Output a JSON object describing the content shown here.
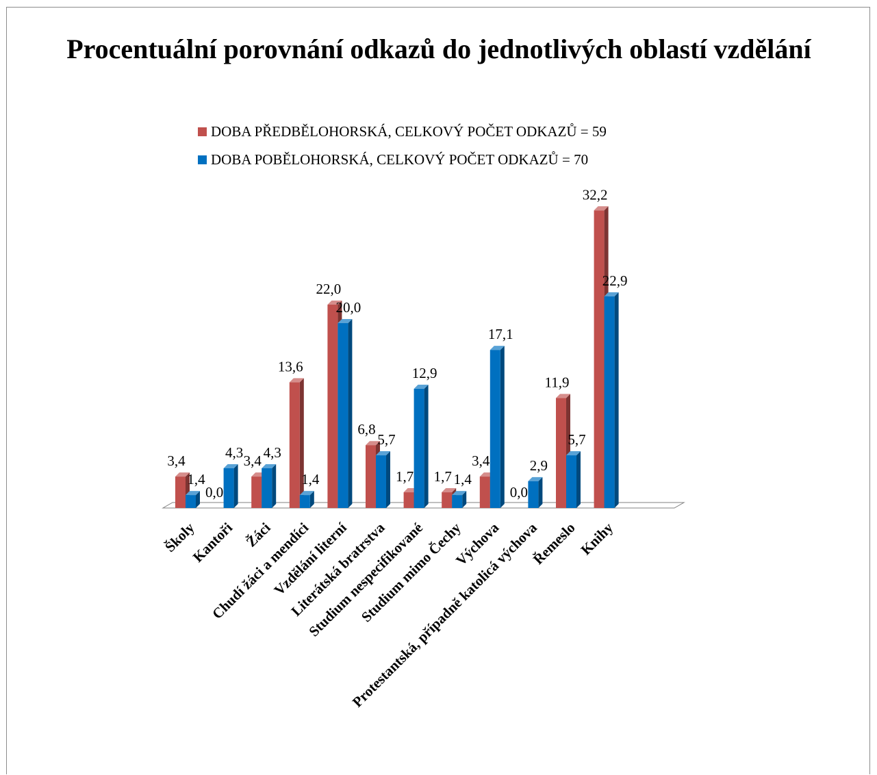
{
  "chart_data": {
    "type": "bar",
    "title": "Procentuální porovnání odkazů do jednotlivých oblastí vzdělání",
    "legend_position": "top",
    "grid": false,
    "ylim": [
      0,
      35
    ],
    "categories": [
      "Školy",
      "Kantoři",
      "Žáci",
      "Chudí žáci a mendíci",
      "Vzdělání literní",
      "Literátská bratrstva",
      "Studium nespecifikované",
      "Studium mimo Čechy",
      "Výchova",
      "Protestantská, případně katolicá výchova",
      "Řemeslo",
      "Knihy"
    ],
    "series": [
      {
        "name": "DOBA PŘEDBĚLOHORSKÁ, CELKOVÝ POČET ODKAZŮ = 59",
        "color": "#c0504d",
        "values": [
          3.4,
          0.0,
          3.4,
          13.6,
          22.0,
          6.8,
          1.7,
          1.7,
          3.4,
          0.0,
          11.9,
          32.2
        ],
        "labels": [
          "3,4",
          "0,0",
          "3,4",
          "13,6",
          "22,0",
          "6,8",
          "1,7",
          "1,7",
          "3,4",
          "0,0",
          "11,9",
          "32,2"
        ]
      },
      {
        "name": "DOBA POBĚLOHORSKÁ, CELKOVÝ POČET ODKAZŮ = 70",
        "color": "#0070c0",
        "values": [
          1.4,
          4.3,
          4.3,
          1.4,
          20.0,
          5.7,
          12.9,
          1.4,
          17.1,
          2.9,
          5.7,
          22.9
        ],
        "labels": [
          "1,4",
          "4,3",
          "4,3",
          "1,4",
          "20,0",
          "5,7",
          "12,9",
          "1,4",
          "17,1",
          "2,9",
          "5,7",
          "22,9"
        ]
      }
    ]
  }
}
